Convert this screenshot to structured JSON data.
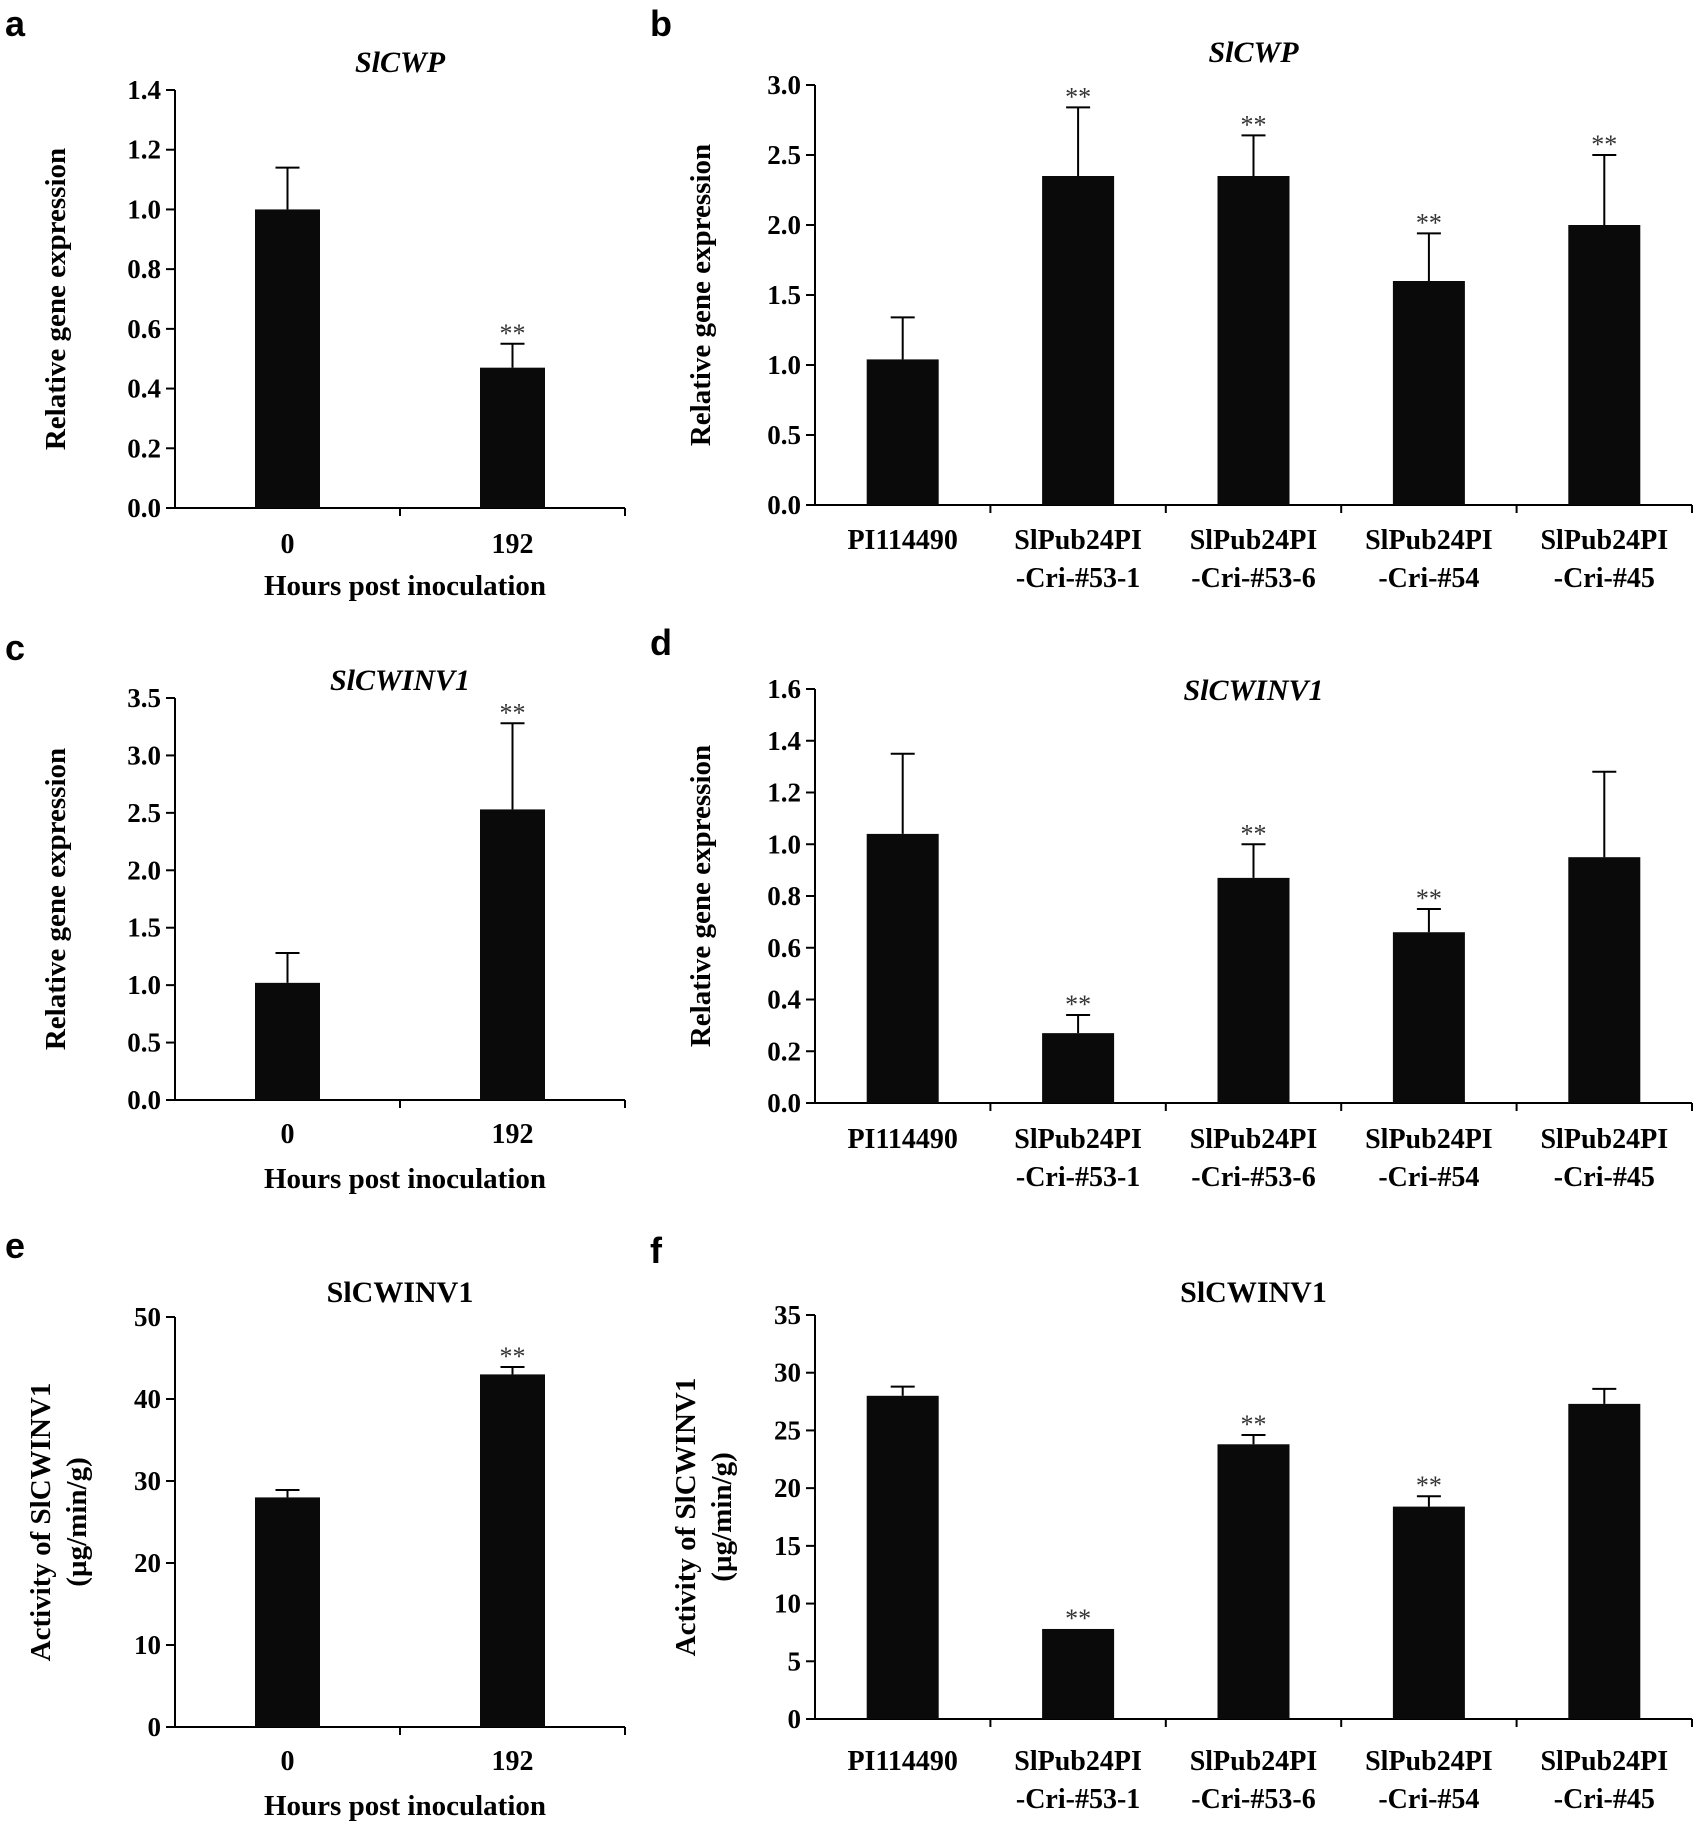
{
  "figure": {
    "panels": [
      {
        "letter": "a"
      },
      {
        "letter": "b"
      },
      {
        "letter": "c"
      },
      {
        "letter": "d"
      },
      {
        "letter": "e"
      },
      {
        "letter": "f"
      }
    ]
  },
  "chart_data": [
    {
      "panel": "a",
      "type": "bar",
      "title": "SlCWP",
      "title_style": "italic",
      "categories": [
        "0",
        "192"
      ],
      "xlabel": "Hours post inoculation",
      "ylabel": "Relative gene expression",
      "ylim": [
        0,
        1.4
      ],
      "yticks": [
        "0.0",
        "0.2",
        "0.4",
        "0.6",
        "0.8",
        "1.0",
        "1.2",
        "1.4"
      ],
      "values": [
        1.0,
        0.47
      ],
      "errors": [
        0.14,
        0.08
      ],
      "significance": [
        "",
        "**"
      ]
    },
    {
      "panel": "b",
      "type": "bar",
      "title": "SlCWP",
      "title_style": "italic",
      "categories": [
        [
          "PI114490"
        ],
        [
          "SlPub24PI",
          "-Cri-#53-1"
        ],
        [
          "SlPub24PI",
          "-Cri-#53-6"
        ],
        [
          "SlPub24PI",
          "-Cri-#54"
        ],
        [
          "SlPub24PI",
          "-Cri-#45"
        ]
      ],
      "xlabel": "",
      "ylabel": "Relative gene expression",
      "ylim": [
        0,
        3.0
      ],
      "yticks": [
        "0.0",
        "0.5",
        "1.0",
        "1.5",
        "2.0",
        "2.5",
        "3.0"
      ],
      "values": [
        1.04,
        2.35,
        2.35,
        1.6,
        2.0
      ],
      "errors": [
        0.3,
        0.49,
        0.29,
        0.34,
        0.5
      ],
      "significance": [
        "",
        "**",
        "**",
        "**",
        "**"
      ]
    },
    {
      "panel": "c",
      "type": "bar",
      "title": "SlCWINV1",
      "title_style": "italic",
      "categories": [
        "0",
        "192"
      ],
      "xlabel": "Hours post inoculation",
      "ylabel": "Relative gene expression",
      "ylim": [
        0,
        3.5
      ],
      "yticks": [
        "0.0",
        "0.5",
        "1.0",
        "1.5",
        "2.0",
        "2.5",
        "3.0",
        "3.5"
      ],
      "values": [
        1.02,
        2.53
      ],
      "errors": [
        0.26,
        0.75
      ],
      "significance": [
        "",
        "**"
      ]
    },
    {
      "panel": "d",
      "type": "bar",
      "title": "SlCWINV1",
      "title_style": "italic",
      "categories": [
        [
          "PI114490"
        ],
        [
          "SlPub24PI",
          "-Cri-#53-1"
        ],
        [
          "SlPub24PI",
          "-Cri-#53-6"
        ],
        [
          "SlPub24PI",
          "-Cri-#54"
        ],
        [
          "SlPub24PI",
          "-Cri-#45"
        ]
      ],
      "xlabel": "",
      "ylabel": "Relative gene expression",
      "ylim": [
        0,
        1.6
      ],
      "yticks": [
        "0.0",
        "0.2",
        "0.4",
        "0.6",
        "0.8",
        "1.0",
        "1.2",
        "1.4",
        "1.6"
      ],
      "values": [
        1.04,
        0.27,
        0.87,
        0.66,
        0.95
      ],
      "errors": [
        0.31,
        0.07,
        0.13,
        0.09,
        0.33
      ],
      "significance": [
        "",
        "**",
        "**",
        "**",
        ""
      ]
    },
    {
      "panel": "e",
      "type": "bar",
      "title": "SlCWINV1",
      "title_style": "normal",
      "categories": [
        "0",
        "192"
      ],
      "xlabel": "Hours post inoculation",
      "ylabel": [
        "Activity of SlCWINV1",
        "(µg/min/g)"
      ],
      "ylim": [
        0,
        50
      ],
      "yticks": [
        "0",
        "10",
        "20",
        "30",
        "40",
        "50"
      ],
      "values": [
        28,
        43
      ],
      "errors": [
        0.9,
        0.9
      ],
      "significance": [
        "",
        "**"
      ]
    },
    {
      "panel": "f",
      "type": "bar",
      "title": "SlCWINV1",
      "title_style": "normal",
      "categories": [
        [
          "PI114490"
        ],
        [
          "SlPub24PI",
          "-Cri-#53-1"
        ],
        [
          "SlPub24PI",
          "-Cri-#53-6"
        ],
        [
          "SlPub24PI",
          "-Cri-#54"
        ],
        [
          "SlPub24PI",
          "-Cri-#45"
        ]
      ],
      "xlabel": "",
      "ylabel": [
        "Activity of SlCWINV1",
        "(µg/min/g)"
      ],
      "ylim": [
        0,
        35
      ],
      "yticks": [
        "0",
        "5",
        "10",
        "15",
        "20",
        "25",
        "30",
        "35"
      ],
      "values": [
        28,
        7.8,
        23.8,
        18.4,
        27.3
      ],
      "errors": [
        0.8,
        0,
        0.8,
        0.9,
        1.3
      ],
      "significance": [
        "",
        "**",
        "**",
        "**",
        ""
      ]
    }
  ]
}
